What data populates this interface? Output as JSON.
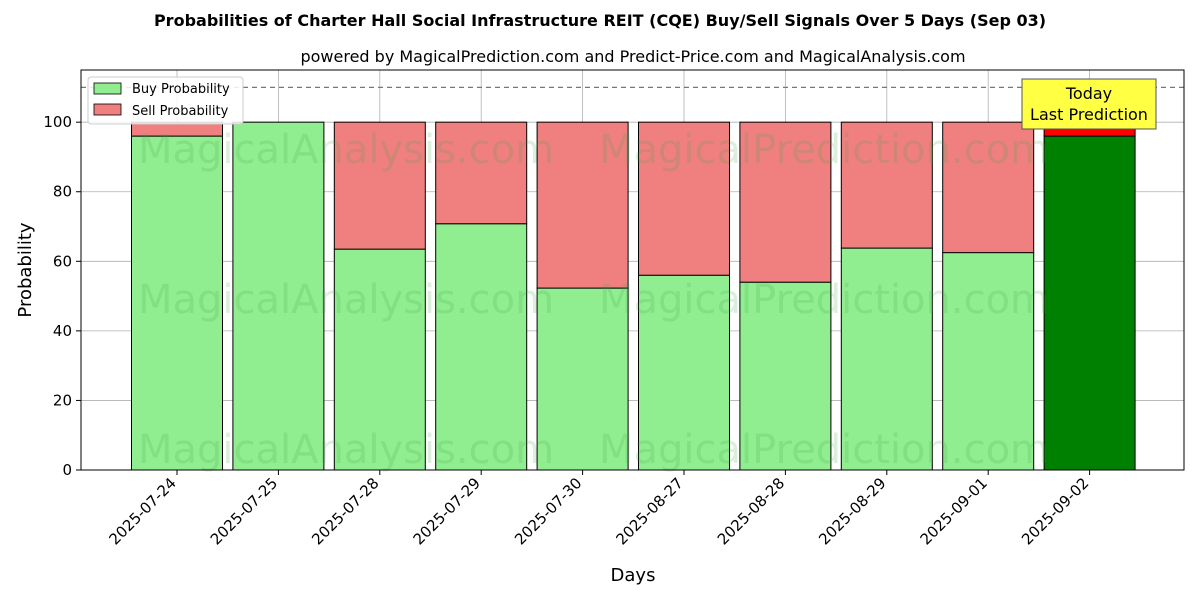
{
  "chart_data": {
    "type": "bar",
    "stacked": true,
    "title": "Probabilities of Charter Hall Social Infrastructure REIT (CQE) Buy/Sell Signals Over 5 Days (Sep 03)",
    "subtitle": "powered by MagicalPrediction.com and Predict-Price.com and MagicalAnalysis.com",
    "xlabel": "Days",
    "ylabel": "Probability",
    "ylim": [
      0,
      115
    ],
    "yticks": [
      0,
      20,
      40,
      60,
      80,
      100
    ],
    "grid": true,
    "legend_placement": "top-left",
    "reference_line": 110,
    "categories": [
      "2025-07-24",
      "2025-07-25",
      "2025-07-28",
      "2025-07-29",
      "2025-07-30",
      "2025-08-27",
      "2025-08-28",
      "2025-08-29",
      "2025-09-01",
      "2025-09-02"
    ],
    "series": [
      {
        "name": "Buy Probability",
        "color": "#90ee90",
        "highlight_color": "#008000",
        "values": [
          96,
          100,
          63.5,
          70.8,
          52.3,
          56,
          54,
          63.8,
          62.5,
          96
        ]
      },
      {
        "name": "Sell Probability",
        "color": "#f08080",
        "highlight_color": "#ff0000",
        "values": [
          4,
          0,
          36.5,
          29.2,
          47.7,
          44,
          46,
          36.2,
          37.5,
          4
        ]
      }
    ],
    "highlight_category": "2025-09-02",
    "annotation": {
      "line1": "Today",
      "line2": "Last Prediction",
      "color": "#ffff44"
    },
    "watermarks": [
      "MagicalAnalysis.com",
      "MagicalPrediction.com",
      "MagicalAnalysis.com",
      "MagicalPrediction.com",
      "MagicalAnalysis.com",
      "MagicalPrediction.com"
    ]
  }
}
